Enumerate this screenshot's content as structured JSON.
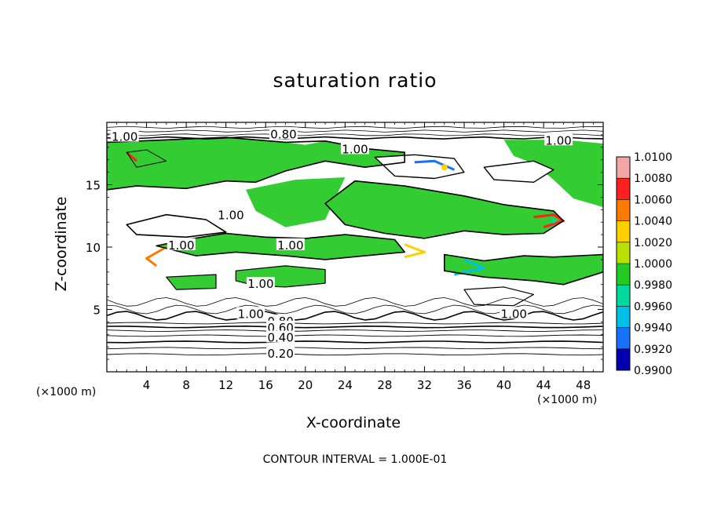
{
  "chart_data": {
    "type": "heatmap",
    "title": "saturation ratio",
    "xlabel": "X-coordinate",
    "ylabel": "Z-coordinate",
    "x_unit_label": "(×1000 m)",
    "y_unit_label": "(×1000 m)",
    "xlim": [
      0,
      50
    ],
    "ylim": [
      0,
      20
    ],
    "x_ticks": [
      4,
      8,
      12,
      16,
      20,
      24,
      28,
      32,
      36,
      40,
      44,
      48
    ],
    "y_ticks": [
      5,
      10,
      15
    ],
    "colorbar": {
      "levels": [
        "1.0100",
        "1.0080",
        "1.0060",
        "1.0040",
        "1.0020",
        "1.0000",
        "0.9980",
        "0.9960",
        "0.9940",
        "0.9920",
        "0.9900"
      ],
      "colors": [
        "#f4a6a6",
        "#ff2020",
        "#ff7a00",
        "#ffd000",
        "#b8e000",
        "#22cc22",
        "#00d8a0",
        "#00c0e8",
        "#1870ff",
        "#0000b0",
        "#6a0dad"
      ]
    },
    "contour_labels": [
      "1.00",
      "0.80",
      "1.00",
      "1.00",
      "1.00",
      "1.00",
      "1.00",
      "1.00",
      "1.00",
      "0.80",
      "0.60",
      "0.40",
      "0.20",
      "1.00"
    ],
    "contour_interval_text": "CONTOUR INTERVAL = 1.000E-01"
  }
}
